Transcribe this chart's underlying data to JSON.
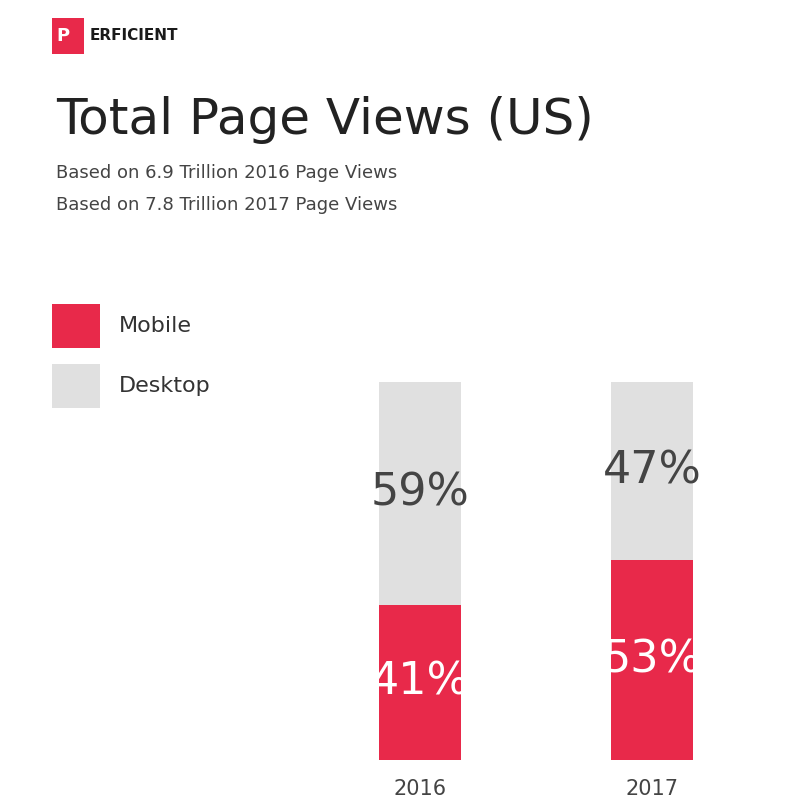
{
  "title": "Total Page Views (US)",
  "subtitle1": "Based on 6.9 Trillion 2016 Page Views",
  "subtitle2": "Based on 7.8 Trillion 2017 Page Views",
  "years": [
    "2016",
    "2017"
  ],
  "mobile_pct": [
    41,
    53
  ],
  "desktop_pct": [
    59,
    47
  ],
  "mobile_color": "#e8294a",
  "desktop_color": "#e0e0e0",
  "mobile_text_color": "#ffffff",
  "desktop_text_color": "#444444",
  "bar_width": 0.35,
  "background_color": "#ffffff",
  "legend_mobile_label": "Mobile",
  "legend_desktop_label": "Desktop",
  "perficient_p": "P",
  "perficient_rest": "ERFICIENT",
  "perficient_p_color": "#e8294a",
  "perficient_text_color": "#1a1a1a",
  "title_fontsize": 36,
  "subtitle_fontsize": 13,
  "label_fontsize": 32,
  "legend_fontsize": 16,
  "tick_fontsize": 15
}
